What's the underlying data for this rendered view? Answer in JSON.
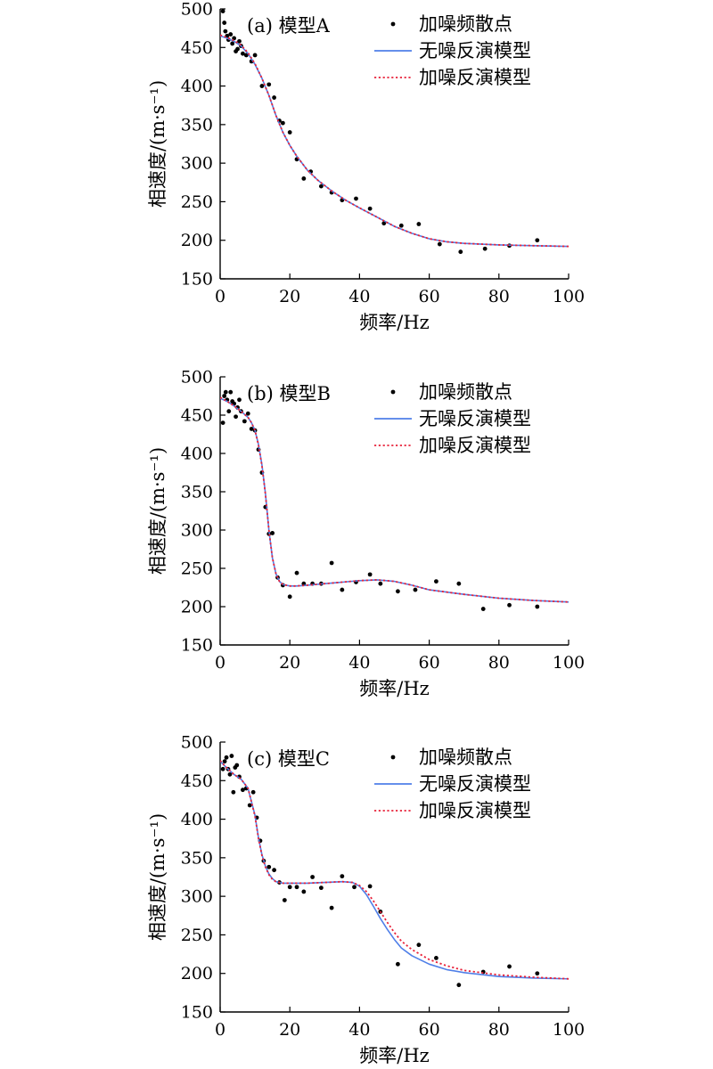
{
  "chart_data": [
    {
      "type": "line",
      "title": "(a) 模型A",
      "xlabel": "频率/Hz",
      "ylabel": "相速度/(m·s⁻¹)",
      "xlim": [
        0,
        100
      ],
      "ylim": [
        150,
        500
      ],
      "xticks": [
        0,
        20,
        40,
        60,
        80,
        100
      ],
      "yticks": [
        150,
        200,
        250,
        300,
        350,
        400,
        450,
        500
      ],
      "legend_position": "top-right",
      "series": [
        {
          "name": "加噪频散点",
          "kind": "scatter",
          "color": "#000000",
          "x": [
            0.8,
            1.2,
            1.5,
            2,
            2.4,
            3,
            3.5,
            4,
            4.5,
            5,
            5.5,
            6,
            6.5,
            7.5,
            9,
            10,
            12,
            14,
            15.5,
            17,
            18,
            20,
            22,
            24,
            26,
            29,
            32,
            35,
            39,
            43,
            47,
            52,
            57,
            63,
            69,
            76,
            83,
            91
          ],
          "y": [
            497,
            482,
            471,
            465,
            460,
            467,
            455,
            462,
            445,
            448,
            458,
            452,
            442,
            440,
            432,
            440,
            400,
            402,
            385,
            355,
            352,
            340,
            305,
            280,
            289,
            270,
            262,
            252,
            254,
            241,
            222,
            219,
            221,
            195,
            185,
            189,
            193,
            200
          ]
        },
        {
          "name": "无噪反演模型",
          "kind": "line",
          "color": "#4f7fe8",
          "x": [
            0,
            2,
            4,
            6,
            8,
            10,
            12,
            14,
            16,
            18,
            20,
            22,
            25,
            28,
            32,
            36,
            40,
            45,
            50,
            55,
            60,
            65,
            70,
            80,
            90,
            100
          ],
          "y": [
            465,
            462,
            458,
            452,
            442,
            428,
            410,
            388,
            362,
            340,
            323,
            309,
            291,
            278,
            264,
            252,
            242,
            230,
            218,
            209,
            202,
            198,
            196,
            194,
            193,
            192
          ]
        },
        {
          "name": "加噪反演模型",
          "kind": "line",
          "color": "#e8223a",
          "x": [
            0,
            2,
            4,
            6,
            8,
            10,
            12,
            14,
            16,
            18,
            20,
            22,
            25,
            28,
            32,
            36,
            40,
            45,
            50,
            55,
            60,
            65,
            70,
            80,
            90,
            100
          ],
          "y": [
            466,
            463,
            459,
            453,
            443,
            429,
            410,
            388,
            362,
            340,
            323,
            309,
            291,
            278,
            264,
            252,
            242,
            230,
            218,
            209,
            202,
            198,
            196,
            194,
            193,
            192
          ]
        }
      ]
    },
    {
      "type": "line",
      "title": "(b) 模型B",
      "xlabel": "频率/Hz",
      "ylabel": "相速度/(m·s⁻¹)",
      "xlim": [
        0,
        100
      ],
      "ylim": [
        150,
        500
      ],
      "xticks": [
        0,
        20,
        40,
        60,
        80,
        100
      ],
      "yticks": [
        150,
        200,
        250,
        300,
        350,
        400,
        450,
        500
      ],
      "legend_position": "top-right",
      "series": [
        {
          "name": "加噪频散点",
          "kind": "scatter",
          "color": "#000000",
          "x": [
            0.8,
            1.2,
            1.6,
            2,
            2.5,
            3,
            3.5,
            4,
            4.5,
            5,
            5.5,
            6,
            7,
            8,
            9,
            10,
            11,
            12,
            13,
            14,
            15,
            16.5,
            18,
            20,
            22,
            24,
            26.5,
            29,
            32,
            35,
            39,
            43,
            46,
            51,
            56,
            62,
            68.5,
            75.5,
            83,
            91
          ],
          "y": [
            440,
            475,
            480,
            470,
            455,
            480,
            468,
            465,
            448,
            460,
            470,
            455,
            442,
            452,
            432,
            430,
            405,
            375,
            330,
            295,
            296,
            238,
            228,
            213,
            244,
            230,
            230,
            230,
            257,
            222,
            232,
            242,
            230,
            220,
            222,
            233,
            230,
            197,
            202,
            200
          ]
        },
        {
          "name": "无噪反演模型",
          "kind": "line",
          "color": "#4f7fe8",
          "x": [
            0,
            2,
            4,
            6,
            8,
            9,
            10,
            11,
            12,
            13,
            14,
            15,
            16,
            17,
            18,
            20,
            22,
            25,
            30,
            35,
            40,
            45,
            50,
            55,
            60,
            70,
            80,
            90,
            100
          ],
          "y": [
            472,
            468,
            462,
            455,
            447,
            440,
            430,
            412,
            385,
            348,
            300,
            264,
            243,
            233,
            229,
            227,
            227,
            228,
            230,
            232,
            234,
            235,
            233,
            228,
            222,
            216,
            211,
            208,
            206
          ]
        },
        {
          "name": "加噪反演模型",
          "kind": "line",
          "color": "#e8223a",
          "x": [
            0,
            2,
            4,
            6,
            8,
            9,
            10,
            11,
            12,
            13,
            14,
            15,
            16,
            17,
            18,
            20,
            22,
            25,
            30,
            35,
            40,
            45,
            50,
            55,
            60,
            70,
            80,
            90,
            100
          ],
          "y": [
            473,
            468,
            462,
            455,
            447,
            440,
            430,
            411,
            384,
            347,
            300,
            264,
            243,
            233,
            229,
            227,
            227,
            228,
            230,
            232,
            234,
            235,
            233,
            228,
            222,
            216,
            211,
            208,
            206
          ]
        }
      ]
    },
    {
      "type": "line",
      "title": "(c) 模型C",
      "xlabel": "频率/Hz",
      "ylabel": "相速度/(m·s⁻¹)",
      "xlim": [
        0,
        100
      ],
      "ylim": [
        150,
        500
      ],
      "xticks": [
        0,
        20,
        40,
        60,
        80,
        100
      ],
      "yticks": [
        150,
        200,
        250,
        300,
        350,
        400,
        450,
        500
      ],
      "legend_position": "top-right",
      "series": [
        {
          "name": "加噪频散点",
          "kind": "scatter",
          "color": "#000000",
          "x": [
            0.8,
            1.3,
            1.8,
            2.3,
            2.8,
            3.3,
            3.8,
            4.3,
            4.8,
            5.5,
            6.5,
            7.5,
            8.5,
            9.5,
            10.5,
            11.5,
            12.5,
            14,
            15.5,
            17,
            18.5,
            20,
            22,
            24,
            26.5,
            29,
            32,
            35,
            38.5,
            43,
            46,
            51,
            57,
            62,
            68.5,
            75.5,
            83,
            91
          ],
          "y": [
            465,
            475,
            480,
            465,
            458,
            482,
            435,
            467,
            470,
            455,
            438,
            440,
            418,
            435,
            402,
            372,
            346,
            338,
            334,
            318,
            295,
            312,
            312,
            306,
            325,
            311,
            285,
            326,
            312,
            313,
            280,
            212,
            237,
            220,
            185,
            202,
            209,
            200
          ]
        },
        {
          "name": "无噪反演模型",
          "kind": "line",
          "color": "#4f7fe8",
          "x": [
            0,
            2,
            4,
            6,
            8,
            10,
            11,
            12,
            13,
            14,
            15,
            16,
            18,
            20,
            25,
            30,
            35,
            38,
            40,
            42,
            44,
            46,
            48,
            50,
            52,
            55,
            60,
            65,
            70,
            80,
            90,
            100
          ],
          "y": [
            475,
            466,
            458,
            452,
            440,
            405,
            376,
            354,
            339,
            329,
            323,
            319,
            317,
            317,
            317,
            318,
            319,
            318,
            313,
            302,
            287,
            271,
            257,
            244,
            233,
            223,
            212,
            205,
            201,
            196,
            194,
            193
          ]
        },
        {
          "name": "加噪反演模型",
          "kind": "line",
          "color": "#e8223a",
          "x": [
            0,
            2,
            4,
            6,
            8,
            10,
            11,
            12,
            13,
            14,
            15,
            16,
            18,
            20,
            25,
            30,
            35,
            38,
            40,
            42,
            44,
            46,
            48,
            50,
            52,
            55,
            60,
            65,
            70,
            80,
            90,
            100
          ],
          "y": [
            476,
            466,
            458,
            452,
            440,
            404,
            375,
            353,
            338,
            328,
            322,
            319,
            317,
            317,
            317,
            318,
            319,
            318,
            314,
            306,
            294,
            280,
            266,
            253,
            242,
            231,
            218,
            210,
            204,
            198,
            195,
            193
          ]
        }
      ]
    }
  ]
}
